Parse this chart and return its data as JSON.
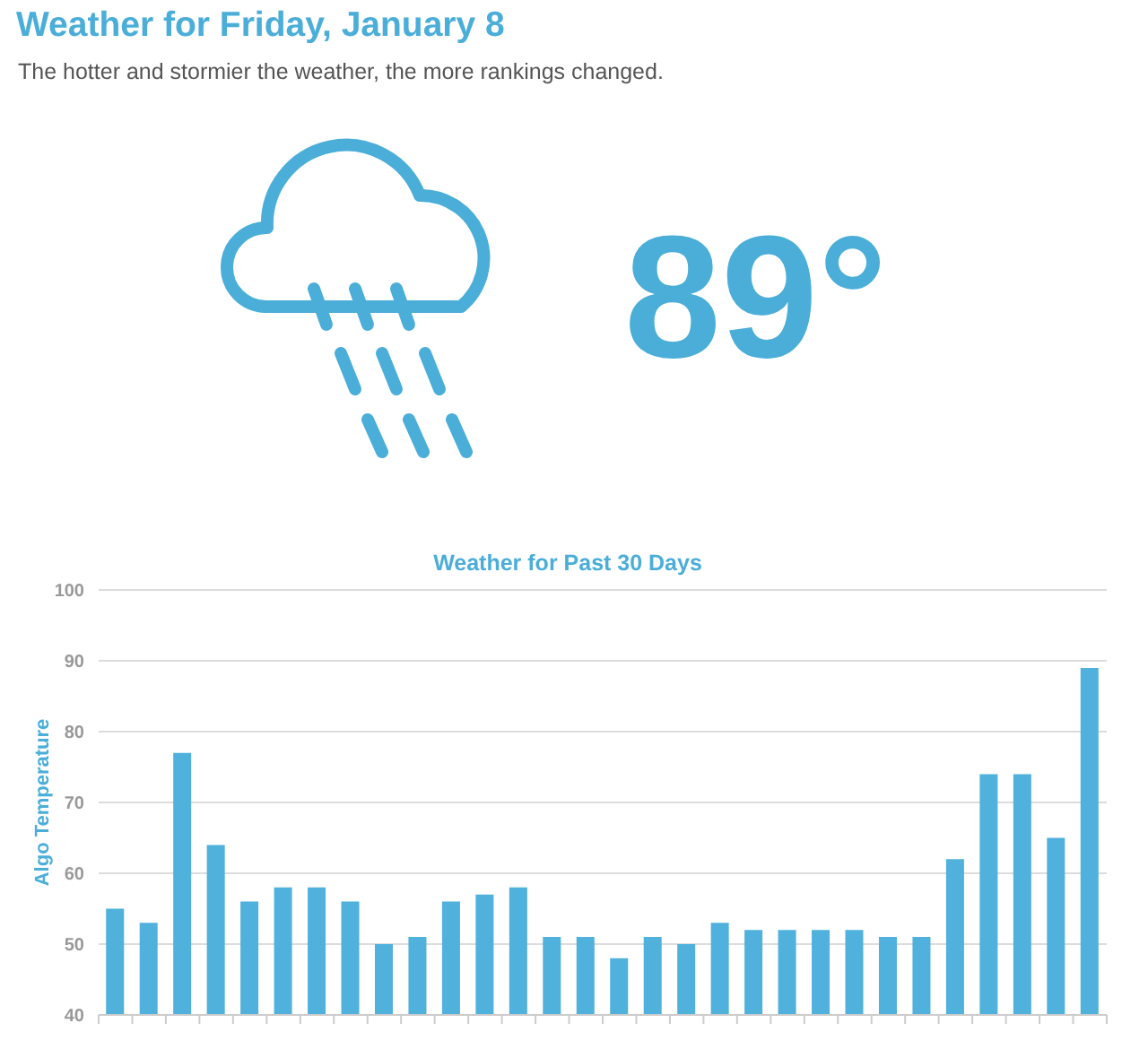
{
  "chart_data": {
    "type": "bar",
    "title": "Weather for Friday, January 8",
    "subtitle": "Weather for Past 30 Days",
    "annotations": [
      "The hotter and stormier the weather, the more rankings changed.",
      "89°"
    ],
    "ylabel": "Algo Temperature",
    "categories": [
      null,
      null,
      null,
      null,
      null,
      null,
      null,
      null,
      null,
      null,
      null,
      null,
      null,
      null,
      null,
      null,
      null,
      null,
      null,
      null,
      null,
      null,
      null,
      null,
      null,
      null,
      null,
      null,
      null,
      null
    ],
    "values": [
      55,
      53,
      77,
      64,
      56,
      58,
      58,
      56,
      50,
      51,
      56,
      57,
      58,
      51,
      51,
      48,
      51,
      50,
      53,
      52,
      52,
      52,
      52,
      51,
      51,
      62,
      74,
      74,
      65,
      89
    ],
    "color": "#4fb1dc",
    "ylim": [
      40,
      100
    ],
    "yticks": [
      40,
      50,
      60,
      70,
      80,
      90,
      100
    ],
    "grid": "y",
    "tick_labels": "y"
  }
}
